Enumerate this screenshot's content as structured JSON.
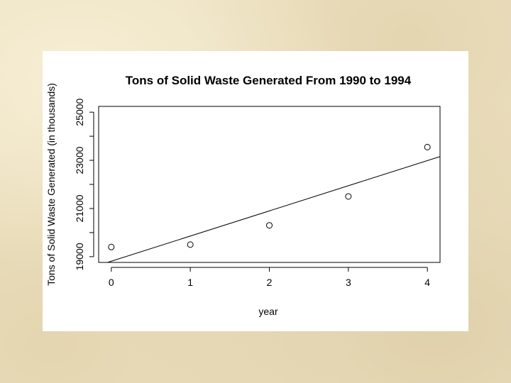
{
  "chart_data": {
    "type": "scatter",
    "title": "Tons of Solid Waste Generated From 1990 to 1994",
    "xlabel": "year",
    "ylabel": "Tons of Solid Waste Generated (in thousands)",
    "x": [
      0,
      1,
      2,
      3,
      4
    ],
    "y": [
      19400,
      19500,
      20300,
      21500,
      23550
    ],
    "xlim": [
      -0.16,
      4.16
    ],
    "ylim": [
      18760,
      25240
    ],
    "x_ticks": [
      0,
      1,
      2,
      3,
      4
    ],
    "x_tick_labels": [
      "0",
      "1",
      "2",
      "3",
      "4"
    ],
    "y_ticks": [
      19000,
      21000,
      23000,
      25000
    ],
    "y_tick_labels": [
      "19000",
      "21000",
      "23000",
      "25000"
    ],
    "y_minor_ticks": [
      20000,
      22000,
      24000
    ],
    "regression_line": {
      "intercept": 18810,
      "slope": 1045
    },
    "grid": false,
    "legend": "none",
    "point_marker": "open-circle"
  }
}
